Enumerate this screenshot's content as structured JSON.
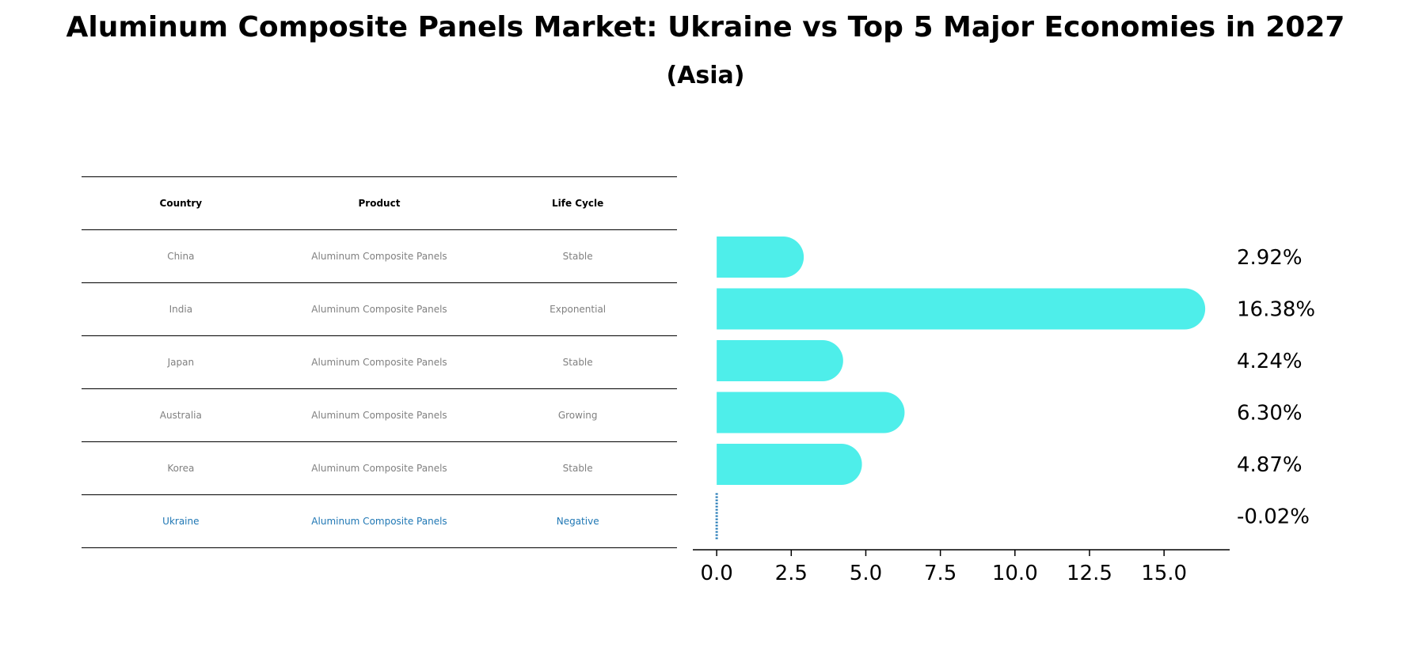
{
  "title": "Aluminum Composite Panels Market: Ukraine vs Top 5 Major Economies in 2027",
  "subtitle": "(Asia)",
  "table": {
    "headers": [
      "Country",
      "Product",
      "Life Cycle"
    ],
    "rows": [
      {
        "country": "China",
        "product": "Aluminum Composite Panels",
        "life_cycle": "Stable"
      },
      {
        "country": "India",
        "product": "Aluminum Composite Panels",
        "life_cycle": "Exponential"
      },
      {
        "country": "Japan",
        "product": "Aluminum Composite Panels",
        "life_cycle": "Stable"
      },
      {
        "country": "Australia",
        "product": "Aluminum Composite Panels",
        "life_cycle": "Growing"
      },
      {
        "country": "Korea",
        "product": "Aluminum Composite Panels",
        "life_cycle": "Stable"
      },
      {
        "country": "Ukraine",
        "product": "Aluminum Composite Panels",
        "life_cycle": "Negative"
      }
    ]
  },
  "chart_data": {
    "type": "bar",
    "orientation": "horizontal",
    "categories": [
      "China",
      "India",
      "Japan",
      "Australia",
      "Korea",
      "Ukraine"
    ],
    "values": [
      2.92,
      16.38,
      4.24,
      6.3,
      4.87,
      -0.02
    ],
    "value_labels": [
      "2.92%",
      "16.38%",
      "4.24%",
      "6.30%",
      "4.87%",
      "-0.02%"
    ],
    "xlim": [
      -0.8,
      17.2
    ],
    "xticks": [
      0.0,
      2.5,
      5.0,
      7.5,
      10.0,
      12.5,
      15.0
    ],
    "xtick_labels": [
      "0.0",
      "2.5",
      "5.0",
      "7.5",
      "10.0",
      "12.5",
      "15.0"
    ],
    "highlight_category": "Ukraine",
    "colors": {
      "bar": "#4eeeea",
      "highlight": "#1f77b4",
      "axis": "#000000"
    }
  }
}
